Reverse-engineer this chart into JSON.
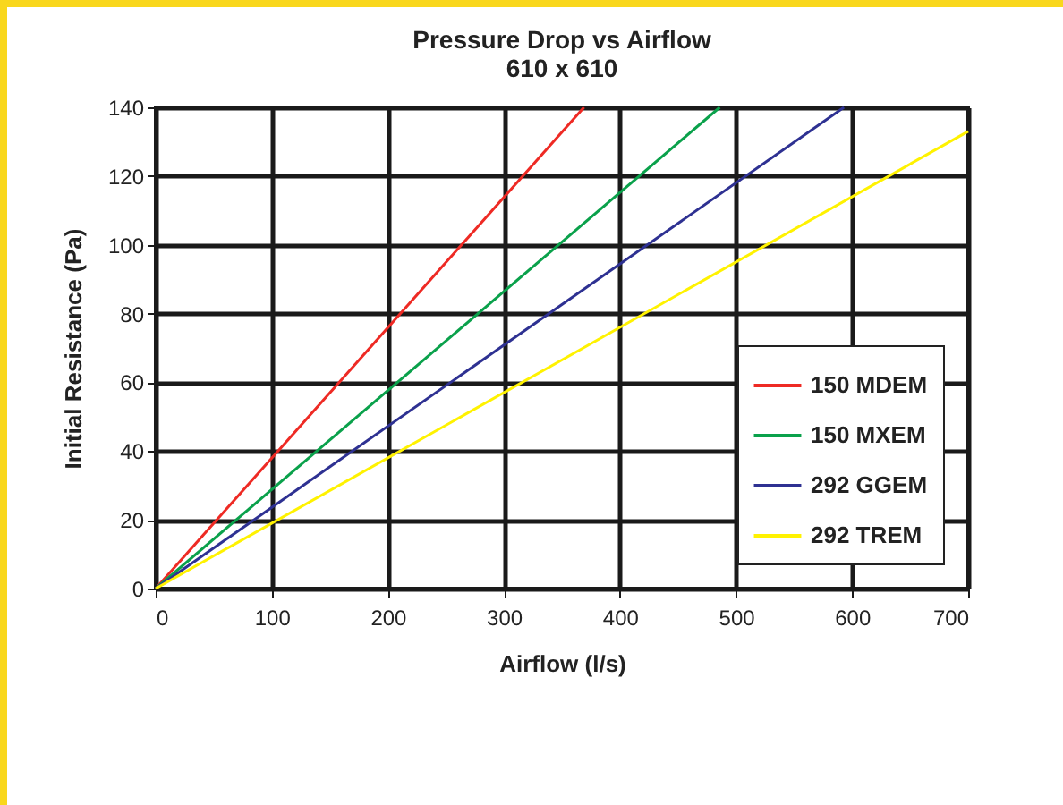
{
  "chart_data": {
    "type": "line",
    "title": "Pressure Drop vs Airflow",
    "subtitle": "610 x 610",
    "xlabel": "Airflow (l/s)",
    "ylabel": "Initial Resistance (Pa)",
    "xlim": [
      0,
      700
    ],
    "xticks": [
      0,
      100,
      200,
      300,
      400,
      500,
      600,
      700
    ],
    "ylim": [
      0,
      140
    ],
    "yticks": [
      0,
      20,
      40,
      60,
      80,
      100,
      120,
      140
    ],
    "grid": true,
    "legend": "bottom right",
    "marker": "none",
    "line_style": "solid",
    "series": [
      {
        "name": "150 MDEM",
        "color": "#ee2a24",
        "x": [
          0,
          369
        ],
        "values": [
          0,
          140
        ]
      },
      {
        "name": "150 MXEM",
        "color": "#0aa14b",
        "x": [
          0,
          486
        ],
        "values": [
          0,
          140
        ]
      },
      {
        "name": "292 GGEM",
        "color": "#2e3192",
        "x": [
          0,
          593
        ],
        "values": [
          0,
          140
        ]
      },
      {
        "name": "292 TREM",
        "color": "#fff200",
        "x": [
          0,
          700
        ],
        "values": [
          0,
          133
        ]
      }
    ]
  }
}
